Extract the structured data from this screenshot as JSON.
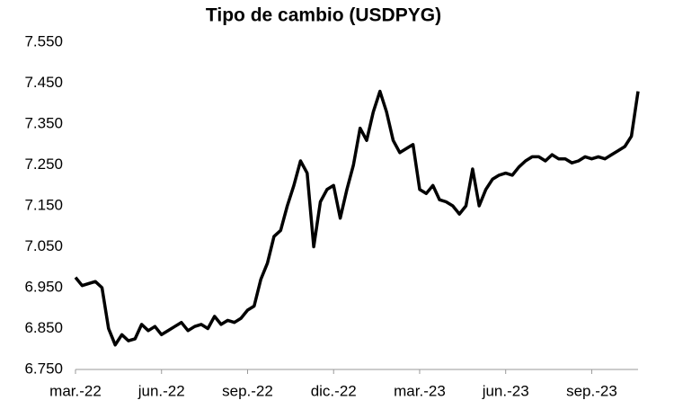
{
  "chart_data": {
    "type": "line",
    "title": "Tipo de cambio (USDPYG)",
    "categories": [
      "mar.-22",
      null,
      null,
      null,
      null,
      null,
      null,
      null,
      null,
      null,
      null,
      null,
      null,
      "jun.-22",
      null,
      null,
      null,
      null,
      null,
      null,
      null,
      null,
      null,
      null,
      null,
      null,
      "sep.-22",
      null,
      null,
      null,
      null,
      null,
      null,
      null,
      null,
      null,
      null,
      null,
      null,
      "dic.-22",
      null,
      null,
      null,
      null,
      null,
      null,
      null,
      null,
      null,
      null,
      null,
      null,
      "mar.-23",
      null,
      null,
      null,
      null,
      null,
      null,
      null,
      null,
      null,
      null,
      null,
      null,
      "jun.-23",
      null,
      null,
      null,
      null,
      null,
      null,
      null,
      null,
      null,
      null,
      null,
      null,
      "sep.-23",
      null,
      null,
      null,
      null,
      null,
      null,
      null
    ],
    "series": [
      {
        "name": "USDPYG",
        "color": "#000000",
        "values": [
          6975,
          6955,
          6960,
          6965,
          6950,
          6850,
          6810,
          6835,
          6820,
          6825,
          6860,
          6845,
          6855,
          6835,
          6845,
          6855,
          6865,
          6845,
          6855,
          6860,
          6850,
          6880,
          6860,
          6870,
          6865,
          6875,
          6895,
          6905,
          6970,
          7010,
          7075,
          7090,
          7150,
          7200,
          7260,
          7230,
          7050,
          7160,
          7190,
          7200,
          7120,
          7190,
          7250,
          7340,
          7310,
          7380,
          7430,
          7380,
          7310,
          7280,
          7290,
          7300,
          7190,
          7180,
          7200,
          7165,
          7160,
          7150,
          7130,
          7150,
          7240,
          7150,
          7190,
          7215,
          7225,
          7230,
          7225,
          7245,
          7260,
          7270,
          7270,
          7260,
          7275,
          7265,
          7265,
          7255,
          7260,
          7270,
          7265,
          7270,
          7265,
          7275,
          7285,
          7295,
          7320,
          7430
        ]
      }
    ],
    "ylim": [
      6750,
      7550
    ],
    "yticks": [
      {
        "value": 6750,
        "label": "6.750"
      },
      {
        "value": 6850,
        "label": "6.850"
      },
      {
        "value": 6950,
        "label": "6.950"
      },
      {
        "value": 7050,
        "label": "7.050"
      },
      {
        "value": 7150,
        "label": "7.150"
      },
      {
        "value": 7250,
        "label": "7.250"
      },
      {
        "value": 7350,
        "label": "7.350"
      },
      {
        "value": 7450,
        "label": "7.450"
      },
      {
        "value": 7550,
        "label": "7.550"
      }
    ],
    "grid": false
  }
}
